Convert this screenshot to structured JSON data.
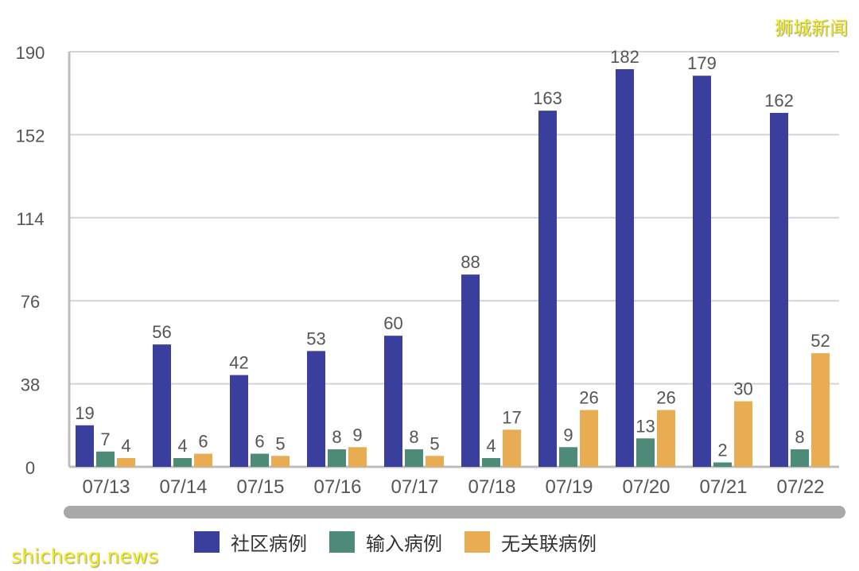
{
  "watermarks": {
    "top_right": "狮城新闻",
    "bottom_left": "shicheng.news"
  },
  "colors": {
    "community": "#3a3f9d",
    "imported": "#4e8a78",
    "unlinked": "#e8ac52",
    "grid": "#d4d4d4",
    "axis": "#bdbdbd",
    "scrollbar": "#a8a8a8"
  },
  "legend": [
    {
      "label": "社区病例",
      "color": "#3a3f9d"
    },
    {
      "label": "输入病例",
      "color": "#4e8a78"
    },
    {
      "label": "无关联病例",
      "color": "#e8ac52"
    }
  ],
  "chart_data": {
    "type": "bar",
    "title": "",
    "xlabel": "",
    "ylabel": "",
    "ylim": [
      0,
      190
    ],
    "yticks": [
      0,
      38,
      76,
      114,
      152,
      190
    ],
    "grid": true,
    "legend_position": "bottom",
    "categories": [
      "07/13",
      "07/14",
      "07/15",
      "07/16",
      "07/17",
      "07/18",
      "07/19",
      "07/20",
      "07/21",
      "07/22"
    ],
    "series": [
      {
        "name": "社区病例",
        "values": [
          19,
          56,
          42,
          53,
          60,
          88,
          163,
          182,
          179,
          162
        ]
      },
      {
        "name": "输入病例",
        "values": [
          7,
          4,
          6,
          8,
          8,
          4,
          9,
          13,
          2,
          8
        ]
      },
      {
        "name": "无关联病例",
        "values": [
          4,
          6,
          5,
          9,
          5,
          17,
          26,
          26,
          30,
          52
        ]
      }
    ]
  }
}
